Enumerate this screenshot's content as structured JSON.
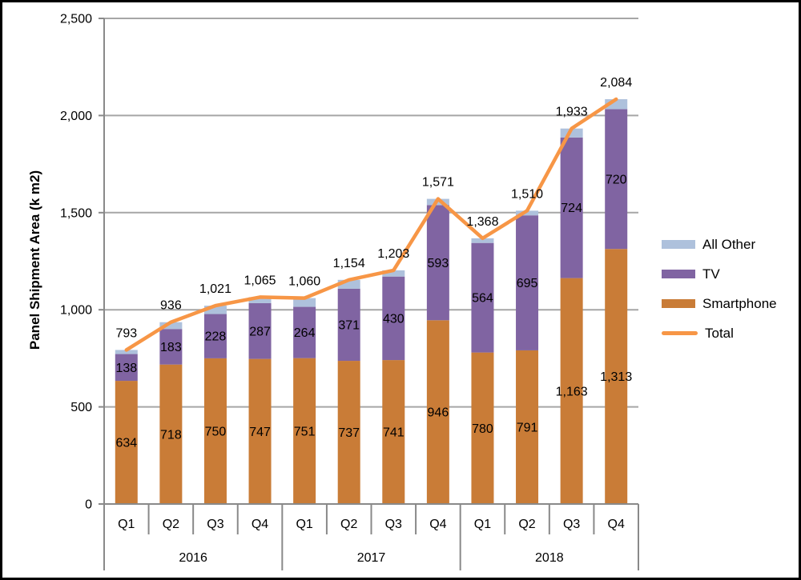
{
  "chart_data": {
    "type": "bar",
    "subtype": "stacked-bar-with-line-combo",
    "title": "",
    "xlabel": "",
    "ylabel": "Panel Shipment Area (k m2)",
    "ylim": [
      0,
      2500
    ],
    "ytick_step": 500,
    "ytick_labels": [
      "0",
      "500",
      "1,000",
      "1,500",
      "2,000",
      "2,500"
    ],
    "grid": true,
    "categories": [
      "Q1",
      "Q2",
      "Q3",
      "Q4",
      "Q1",
      "Q2",
      "Q3",
      "Q4",
      "Q1",
      "Q2",
      "Q3",
      "Q4"
    ],
    "year_groups": [
      {
        "label": "2016",
        "count": 4
      },
      {
        "label": "2017",
        "count": 4
      },
      {
        "label": "2018",
        "count": 4
      }
    ],
    "series": [
      {
        "name": "Smartphone",
        "type": "bar",
        "color": "#C97C37",
        "show_labels": true,
        "values": [
          634,
          718,
          750,
          747,
          751,
          737,
          741,
          946,
          780,
          791,
          1163,
          1313
        ]
      },
      {
        "name": "TV",
        "type": "bar",
        "color": "#8064A2",
        "show_labels": true,
        "values": [
          138,
          183,
          228,
          287,
          264,
          371,
          430,
          593,
          564,
          695,
          724,
          720
        ]
      },
      {
        "name": "All Other",
        "type": "bar",
        "color": "#AEC1DC",
        "show_labels": false,
        "values": [
          21,
          35,
          43,
          31,
          45,
          46,
          32,
          32,
          24,
          24,
          46,
          51
        ]
      },
      {
        "name": "Total",
        "type": "line",
        "color": "#F79646",
        "show_labels": true,
        "values": [
          793,
          936,
          1021,
          1065,
          1060,
          1154,
          1203,
          1571,
          1368,
          1510,
          1933,
          2084
        ]
      }
    ],
    "legend": {
      "position": "right",
      "items": [
        {
          "label": "All Other",
          "swatch": "rect",
          "color": "#AEC1DC"
        },
        {
          "label": "TV",
          "swatch": "rect",
          "color": "#8064A2"
        },
        {
          "label": "Smartphone",
          "swatch": "rect",
          "color": "#C97C37"
        },
        {
          "label": "Total",
          "swatch": "line",
          "color": "#F79646"
        }
      ]
    },
    "colors": {
      "gridline": "#A6A6A6",
      "axis": "#898989",
      "text": "#000000",
      "background": "#FFFFFF"
    }
  }
}
